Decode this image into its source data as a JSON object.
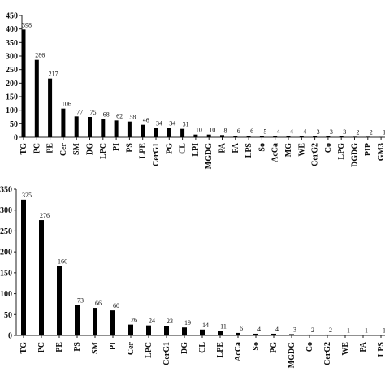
{
  "chart_data": [
    {
      "type": "bar",
      "panel": "top",
      "title": "",
      "xlabel": "",
      "ylabel": "",
      "ylim": [
        0,
        450
      ],
      "yticks": [
        0,
        50,
        100,
        150,
        200,
        250,
        300,
        350,
        400,
        450
      ],
      "grid": false,
      "categories": [
        "TG",
        "PC",
        "PE",
        "Cer",
        "SM",
        "DG",
        "LPC",
        "PI",
        "PS",
        "LPE",
        "CerG1",
        "PG",
        "CL",
        "LPI",
        "MGDG",
        "PA",
        "FA",
        "LPS",
        "So",
        "AcCa",
        "MG",
        "WE",
        "CerG2",
        "Co",
        "LPG",
        "DGDG",
        "PIP",
        "GM3"
      ],
      "values": [
        398,
        286,
        217,
        106,
        77,
        75,
        68,
        62,
        58,
        46,
        34,
        34,
        31,
        10,
        10,
        8,
        6,
        6,
        5,
        4,
        4,
        4,
        3,
        3,
        3,
        2,
        2,
        1
      ]
    },
    {
      "type": "bar",
      "panel": "bottom",
      "title": "",
      "xlabel": "",
      "ylabel": "",
      "ylim": [
        0,
        350
      ],
      "yticks": [
        0,
        50,
        100,
        150,
        200,
        250,
        300,
        350
      ],
      "grid": false,
      "categories": [
        "TG",
        "PC",
        "PE",
        "PS",
        "SM",
        "PI",
        "Cer",
        "LPC",
        "CerG1",
        "DG",
        "CL",
        "LPE",
        "AcCa",
        "So",
        "PG",
        "MGDG",
        "Co",
        "CerG2",
        "WE",
        "PA",
        "LPS"
      ],
      "values": [
        325,
        276,
        166,
        73,
        66,
        60,
        26,
        24,
        23,
        19,
        14,
        11,
        6,
        4,
        4,
        3,
        2,
        2,
        1,
        1,
        1
      ]
    }
  ]
}
